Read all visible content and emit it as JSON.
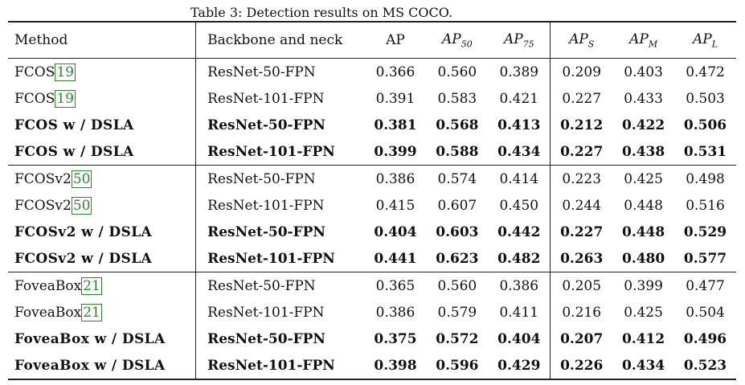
{
  "caption": "Table 3: Detection results on MS COCO.",
  "header": {
    "method": "Method",
    "backbone": "Backbone and neck",
    "ap": "AP",
    "ap50": {
      "base": "AP",
      "sub": "50"
    },
    "ap75": {
      "base": "AP",
      "sub": "75"
    },
    "aps": {
      "base": "AP",
      "sub": "S"
    },
    "apm": {
      "base": "AP",
      "sub": "M"
    },
    "apl": {
      "base": "AP",
      "sub": "L"
    }
  },
  "groups": [
    {
      "rows": [
        {
          "method": "FCOS",
          "cite": "19",
          "backbone": "ResNet-50-FPN",
          "values": [
            "0.366",
            "0.560",
            "0.389",
            "0.209",
            "0.403",
            "0.472"
          ],
          "bold": false
        },
        {
          "method": "FCOS",
          "cite": "19",
          "backbone": "ResNet-101-FPN",
          "values": [
            "0.391",
            "0.583",
            "0.421",
            "0.227",
            "0.433",
            "0.503"
          ],
          "bold": false
        },
        {
          "method": "FCOS w / DSLA",
          "cite": "",
          "backbone": "ResNet-50-FPN",
          "values": [
            "0.381",
            "0.568",
            "0.413",
            "0.212",
            "0.422",
            "0.506"
          ],
          "bold": true
        },
        {
          "method": "FCOS w / DSLA",
          "cite": "",
          "backbone": "ResNet-101-FPN",
          "values": [
            "0.399",
            "0.588",
            "0.434",
            "0.227",
            "0.438",
            "0.531"
          ],
          "bold": true
        }
      ]
    },
    {
      "rows": [
        {
          "method": "FCOSv2",
          "cite": "50",
          "backbone": "ResNet-50-FPN",
          "values": [
            "0.386",
            "0.574",
            "0.414",
            "0.223",
            "0.425",
            "0.498"
          ],
          "bold": false
        },
        {
          "method": "FCOSv2",
          "cite": "50",
          "backbone": "ResNet-101-FPN",
          "values": [
            "0.415",
            "0.607",
            "0.450",
            "0.244",
            "0.448",
            "0.516"
          ],
          "bold": false
        },
        {
          "method": "FCOSv2 w / DSLA",
          "cite": "",
          "backbone": "ResNet-50-FPN",
          "values": [
            "0.404",
            "0.603",
            "0.442",
            "0.227",
            "0.448",
            "0.529"
          ],
          "bold": true
        },
        {
          "method": "FCOSv2 w / DSLA",
          "cite": "",
          "backbone": "ResNet-101-FPN",
          "values": [
            "0.441",
            "0.623",
            "0.482",
            "0.263",
            "0.480",
            "0.577"
          ],
          "bold": true
        }
      ]
    },
    {
      "rows": [
        {
          "method": "FoveaBox",
          "cite": "21",
          "backbone": "ResNet-50-FPN",
          "values": [
            "0.365",
            "0.560",
            "0.386",
            "0.205",
            "0.399",
            "0.477"
          ],
          "bold": false
        },
        {
          "method": "FoveaBox",
          "cite": "21",
          "backbone": "ResNet-101-FPN",
          "values": [
            "0.386",
            "0.579",
            "0.411",
            "0.216",
            "0.425",
            "0.504"
          ],
          "bold": false
        },
        {
          "method": "FoveaBox w / DSLA",
          "cite": "",
          "backbone": "ResNet-50-FPN",
          "values": [
            "0.375",
            "0.572",
            "0.404",
            "0.207",
            "0.412",
            "0.496"
          ],
          "bold": true
        },
        {
          "method": "FoveaBox w / DSLA",
          "cite": "",
          "backbone": "ResNet-101-FPN",
          "values": [
            "0.398",
            "0.596",
            "0.429",
            "0.226",
            "0.434",
            "0.523"
          ],
          "bold": true
        }
      ]
    }
  ]
}
